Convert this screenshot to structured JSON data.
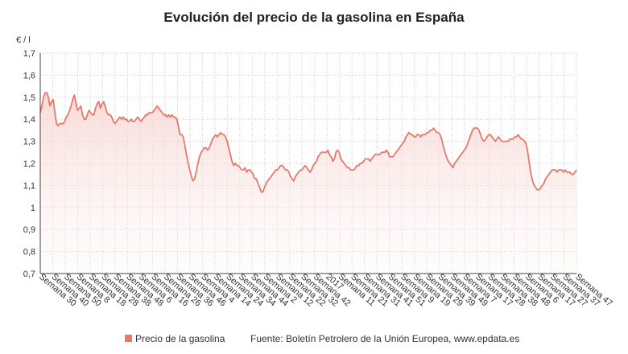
{
  "title": "Evolución del precio de la gasolina en España",
  "unit_label": "€ / l",
  "legend": {
    "label": "Precio de la gasolina"
  },
  "source": "Fuente: Boletín Petrolero de la Unión Europea, www.epdata.es",
  "colors": {
    "line": "#e8796a",
    "fill_top": "#f7d4cf",
    "grid": "#c9c9d6",
    "axis": "#444444"
  },
  "chart_data": {
    "type": "area",
    "title": "Evolución del precio de la gasolina en España",
    "ylabel": "€ / l",
    "ylim": [
      0.7,
      1.7
    ],
    "yticks": [
      "0,7",
      "0,8",
      "0,9",
      "1",
      "1,1",
      "1,2",
      "1,3",
      "1,4",
      "1,5",
      "1,6",
      "1,7"
    ],
    "grid": true,
    "legend_position": "bottom",
    "xtick_labels": [
      "Semana 30",
      "Semana 40",
      "Semana 50",
      "Semana 8",
      "Semana 18",
      "Semana 28",
      "Semana 38",
      "Semana 48",
      "Semana 6",
      "Semana 16",
      "Semana 26",
      "Semana 36",
      "Semana 46",
      "Semana 4",
      "Semana 14",
      "Semana 24",
      "Semana 34",
      "Semana 44",
      "Semana 2",
      "Semana 12",
      "Semana 22",
      "Semana 32",
      "Semana 42",
      "2017",
      "Semana 11",
      "Semana 21",
      "Semana 31",
      "Semana 41",
      "Semana 51",
      "Semana 9",
      "Semana 19",
      "Semana 29",
      "Semana 39",
      "Semana 49",
      "Semana 7",
      "Semana 17",
      "Semana 28",
      "Semana 38",
      "Semana 48",
      "Semana 6",
      "Semana 17",
      "Semana 27",
      "Semana 37",
      "Semana 47"
    ],
    "series": [
      {
        "name": "Precio de la gasolina",
        "values": [
          1.43,
          1.46,
          1.5,
          1.52,
          1.52,
          1.5,
          1.46,
          1.48,
          1.49,
          1.43,
          1.38,
          1.37,
          1.38,
          1.38,
          1.38,
          1.39,
          1.41,
          1.42,
          1.44,
          1.46,
          1.49,
          1.51,
          1.47,
          1.44,
          1.45,
          1.46,
          1.42,
          1.4,
          1.4,
          1.42,
          1.44,
          1.43,
          1.42,
          1.42,
          1.45,
          1.47,
          1.48,
          1.45,
          1.47,
          1.48,
          1.46,
          1.43,
          1.42,
          1.42,
          1.41,
          1.39,
          1.38,
          1.39,
          1.4,
          1.41,
          1.4,
          1.41,
          1.4,
          1.4,
          1.39,
          1.39,
          1.4,
          1.39,
          1.39,
          1.4,
          1.41,
          1.4,
          1.39,
          1.4,
          1.41,
          1.42,
          1.42,
          1.43,
          1.43,
          1.43,
          1.44,
          1.45,
          1.46,
          1.45,
          1.44,
          1.43,
          1.42,
          1.42,
          1.41,
          1.42,
          1.41,
          1.42,
          1.41,
          1.41,
          1.4,
          1.37,
          1.33,
          1.33,
          1.32,
          1.28,
          1.24,
          1.2,
          1.17,
          1.14,
          1.12,
          1.13,
          1.16,
          1.2,
          1.23,
          1.25,
          1.26,
          1.27,
          1.27,
          1.26,
          1.27,
          1.29,
          1.31,
          1.32,
          1.33,
          1.32,
          1.33,
          1.34,
          1.33,
          1.33,
          1.32,
          1.3,
          1.27,
          1.24,
          1.21,
          1.19,
          1.2,
          1.19,
          1.19,
          1.18,
          1.17,
          1.17,
          1.18,
          1.16,
          1.17,
          1.17,
          1.16,
          1.15,
          1.13,
          1.13,
          1.11,
          1.09,
          1.07,
          1.07,
          1.09,
          1.11,
          1.12,
          1.13,
          1.14,
          1.15,
          1.16,
          1.17,
          1.17,
          1.18,
          1.19,
          1.19,
          1.18,
          1.17,
          1.17,
          1.16,
          1.14,
          1.13,
          1.12,
          1.14,
          1.15,
          1.16,
          1.17,
          1.17,
          1.18,
          1.19,
          1.18,
          1.17,
          1.16,
          1.17,
          1.19,
          1.2,
          1.21,
          1.23,
          1.24,
          1.25,
          1.25,
          1.25,
          1.25,
          1.26,
          1.24,
          1.23,
          1.21,
          1.22,
          1.25,
          1.26,
          1.25,
          1.22,
          1.21,
          1.2,
          1.19,
          1.18,
          1.18,
          1.17,
          1.17,
          1.17,
          1.18,
          1.19,
          1.19,
          1.2,
          1.2,
          1.21,
          1.22,
          1.22,
          1.22,
          1.21,
          1.22,
          1.23,
          1.24,
          1.24,
          1.24,
          1.24,
          1.25,
          1.25,
          1.25,
          1.26,
          1.25,
          1.23,
          1.23,
          1.23,
          1.24,
          1.25,
          1.26,
          1.27,
          1.28,
          1.29,
          1.3,
          1.32,
          1.33,
          1.34,
          1.33,
          1.33,
          1.32,
          1.32,
          1.33,
          1.33,
          1.32,
          1.33,
          1.33,
          1.33,
          1.34,
          1.34,
          1.35,
          1.35,
          1.36,
          1.35,
          1.34,
          1.34,
          1.33,
          1.31,
          1.28,
          1.25,
          1.23,
          1.21,
          1.2,
          1.19,
          1.18,
          1.2,
          1.21,
          1.22,
          1.23,
          1.24,
          1.25,
          1.26,
          1.27,
          1.29,
          1.31,
          1.33,
          1.35,
          1.36,
          1.36,
          1.36,
          1.35,
          1.33,
          1.31,
          1.3,
          1.31,
          1.32,
          1.33,
          1.33,
          1.32,
          1.31,
          1.3,
          1.31,
          1.32,
          1.31,
          1.3,
          1.3,
          1.3,
          1.3,
          1.3,
          1.31,
          1.31,
          1.31,
          1.32,
          1.32,
          1.33,
          1.32,
          1.31,
          1.31,
          1.3,
          1.29,
          1.25,
          1.2,
          1.15,
          1.12,
          1.1,
          1.09,
          1.08,
          1.08,
          1.09,
          1.1,
          1.11,
          1.13,
          1.14,
          1.15,
          1.16,
          1.17,
          1.17,
          1.17,
          1.16,
          1.17,
          1.17,
          1.17,
          1.16,
          1.17,
          1.16,
          1.16,
          1.16,
          1.15,
          1.15,
          1.16,
          1.17
        ]
      }
    ]
  }
}
